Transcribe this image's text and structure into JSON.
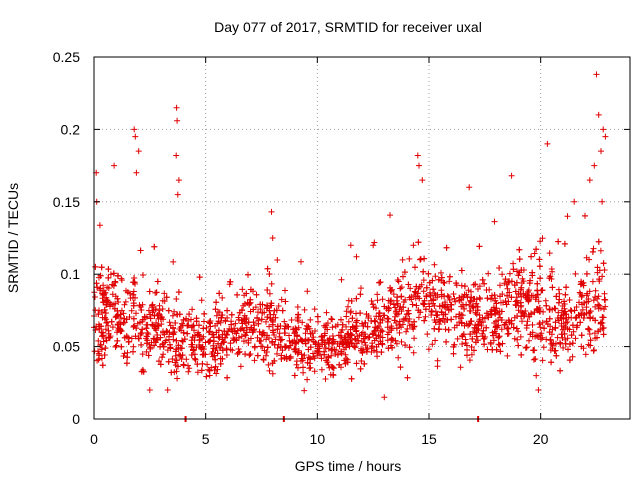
{
  "chart_data": {
    "type": "scatter",
    "title": "Day 077 of 2017, SRMTID for receiver uxal",
    "xlabel": "GPS time / hours",
    "ylabel": "SRMTID / TECUs",
    "xlim": [
      0,
      24
    ],
    "ylim": [
      0,
      0.25
    ],
    "xticks": [
      0,
      5,
      10,
      15,
      20
    ],
    "xtick_labels": [
      "0",
      "5",
      "10",
      "15",
      "20"
    ],
    "yticks": [
      0,
      0.05,
      0.1,
      0.15,
      0.2,
      0.25
    ],
    "ytick_labels": [
      "0",
      "0.05",
      "0.1",
      "0.15",
      "0.2",
      "0.25"
    ],
    "grid": true,
    "marker": "plus",
    "series_color": "#e00000",
    "baseline_markers_x": [
      4.1,
      8.5,
      17.2
    ],
    "highlights": [
      {
        "x": 1.8,
        "y": 0.2
      },
      {
        "x": 1.85,
        "y": 0.195
      },
      {
        "x": 1.9,
        "y": 0.17
      },
      {
        "x": 3.7,
        "y": 0.215
      },
      {
        "x": 3.72,
        "y": 0.206
      },
      {
        "x": 3.68,
        "y": 0.182
      },
      {
        "x": 3.8,
        "y": 0.165
      },
      {
        "x": 3.75,
        "y": 0.155
      },
      {
        "x": 0.1,
        "y": 0.17
      },
      {
        "x": 0.12,
        "y": 0.15
      },
      {
        "x": 0.9,
        "y": 0.175
      },
      {
        "x": 2.0,
        "y": 0.185
      },
      {
        "x": 7.95,
        "y": 0.143
      },
      {
        "x": 8.0,
        "y": 0.125
      },
      {
        "x": 14.5,
        "y": 0.182
      },
      {
        "x": 14.55,
        "y": 0.175
      },
      {
        "x": 14.7,
        "y": 0.165
      },
      {
        "x": 16.8,
        "y": 0.16
      },
      {
        "x": 18.7,
        "y": 0.168
      },
      {
        "x": 20.3,
        "y": 0.19
      },
      {
        "x": 22.5,
        "y": 0.238
      },
      {
        "x": 22.6,
        "y": 0.21
      },
      {
        "x": 22.8,
        "y": 0.2
      },
      {
        "x": 22.9,
        "y": 0.195
      },
      {
        "x": 22.7,
        "y": 0.185
      },
      {
        "x": 22.4,
        "y": 0.175
      },
      {
        "x": 22.2,
        "y": 0.165
      },
      {
        "x": 22.75,
        "y": 0.15
      },
      {
        "x": 21.5,
        "y": 0.15
      },
      {
        "x": 21.2,
        "y": 0.14
      },
      {
        "x": 14.3,
        "y": 0.12
      },
      {
        "x": 12.5,
        "y": 0.12
      },
      {
        "x": 11.5,
        "y": 0.12
      },
      {
        "x": 19.8,
        "y": 0.03
      },
      {
        "x": 19.9,
        "y": 0.02
      },
      {
        "x": 3.3,
        "y": 0.02
      },
      {
        "x": 13.0,
        "y": 0.015
      },
      {
        "x": 2.5,
        "y": 0.02
      }
    ],
    "density_profile": [
      {
        "hour": 0,
        "center": 0.072,
        "spread": 0.03
      },
      {
        "hour": 1,
        "center": 0.07,
        "spread": 0.028
      },
      {
        "hour": 2,
        "center": 0.062,
        "spread": 0.025
      },
      {
        "hour": 3,
        "center": 0.06,
        "spread": 0.025
      },
      {
        "hour": 4,
        "center": 0.055,
        "spread": 0.022
      },
      {
        "hour": 5,
        "center": 0.052,
        "spread": 0.02
      },
      {
        "hour": 6,
        "center": 0.058,
        "spread": 0.022
      },
      {
        "hour": 7,
        "center": 0.065,
        "spread": 0.024
      },
      {
        "hour": 8,
        "center": 0.063,
        "spread": 0.022
      },
      {
        "hour": 9,
        "center": 0.055,
        "spread": 0.02
      },
      {
        "hour": 10,
        "center": 0.05,
        "spread": 0.018
      },
      {
        "hour": 11,
        "center": 0.05,
        "spread": 0.018
      },
      {
        "hour": 12,
        "center": 0.06,
        "spread": 0.02
      },
      {
        "hour": 13,
        "center": 0.065,
        "spread": 0.022
      },
      {
        "hour": 14,
        "center": 0.075,
        "spread": 0.028
      },
      {
        "hour": 15,
        "center": 0.08,
        "spread": 0.028
      },
      {
        "hour": 16,
        "center": 0.075,
        "spread": 0.026
      },
      {
        "hour": 17,
        "center": 0.068,
        "spread": 0.024
      },
      {
        "hour": 18,
        "center": 0.072,
        "spread": 0.026
      },
      {
        "hour": 19,
        "center": 0.078,
        "spread": 0.028
      },
      {
        "hour": 20,
        "center": 0.07,
        "spread": 0.028
      },
      {
        "hour": 21,
        "center": 0.065,
        "spread": 0.026
      },
      {
        "hour": 22,
        "center": 0.075,
        "spread": 0.03
      },
      {
        "hour": 23,
        "center": 0.08,
        "spread": 0.03
      }
    ],
    "bulk_point_count": 2600,
    "data_span_hours": [
      0,
      22.9
    ]
  }
}
